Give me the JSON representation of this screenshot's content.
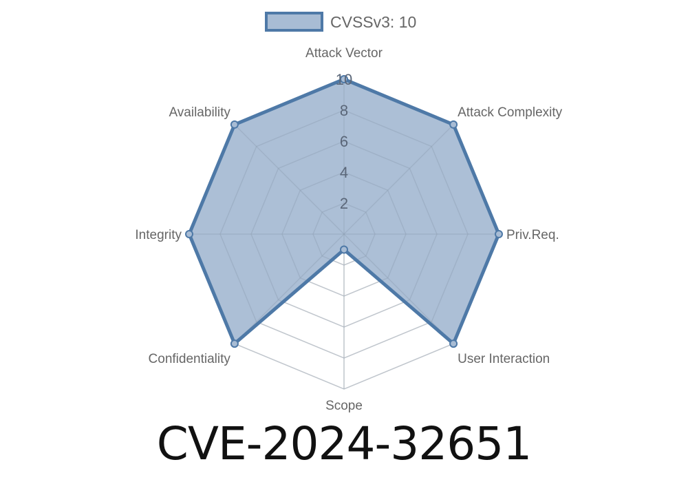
{
  "title": "CVE-2024-32651",
  "chart_data": {
    "type": "radar",
    "legend": {
      "label": "CVSSv3: 10",
      "position": "top"
    },
    "axes": [
      "Attack Vector",
      "Attack Complexity",
      "Priv.Req.",
      "User Interaction",
      "Scope",
      "Confidentiality",
      "Integrity",
      "Availability"
    ],
    "series": [
      {
        "name": "CVSSv3: 10",
        "values": [
          10,
          10,
          10,
          10,
          1,
          10,
          10,
          10
        ]
      }
    ],
    "rlim": [
      0,
      10
    ],
    "ticks": [
      "2",
      "4",
      "6",
      "8",
      "10"
    ],
    "tick_values": [
      2,
      4,
      6,
      8,
      10
    ],
    "grid": true,
    "colors": {
      "line": "#4e79a7",
      "fill": "#a8bcd4",
      "grid": "#dddddd",
      "tick": "#666666"
    }
  }
}
